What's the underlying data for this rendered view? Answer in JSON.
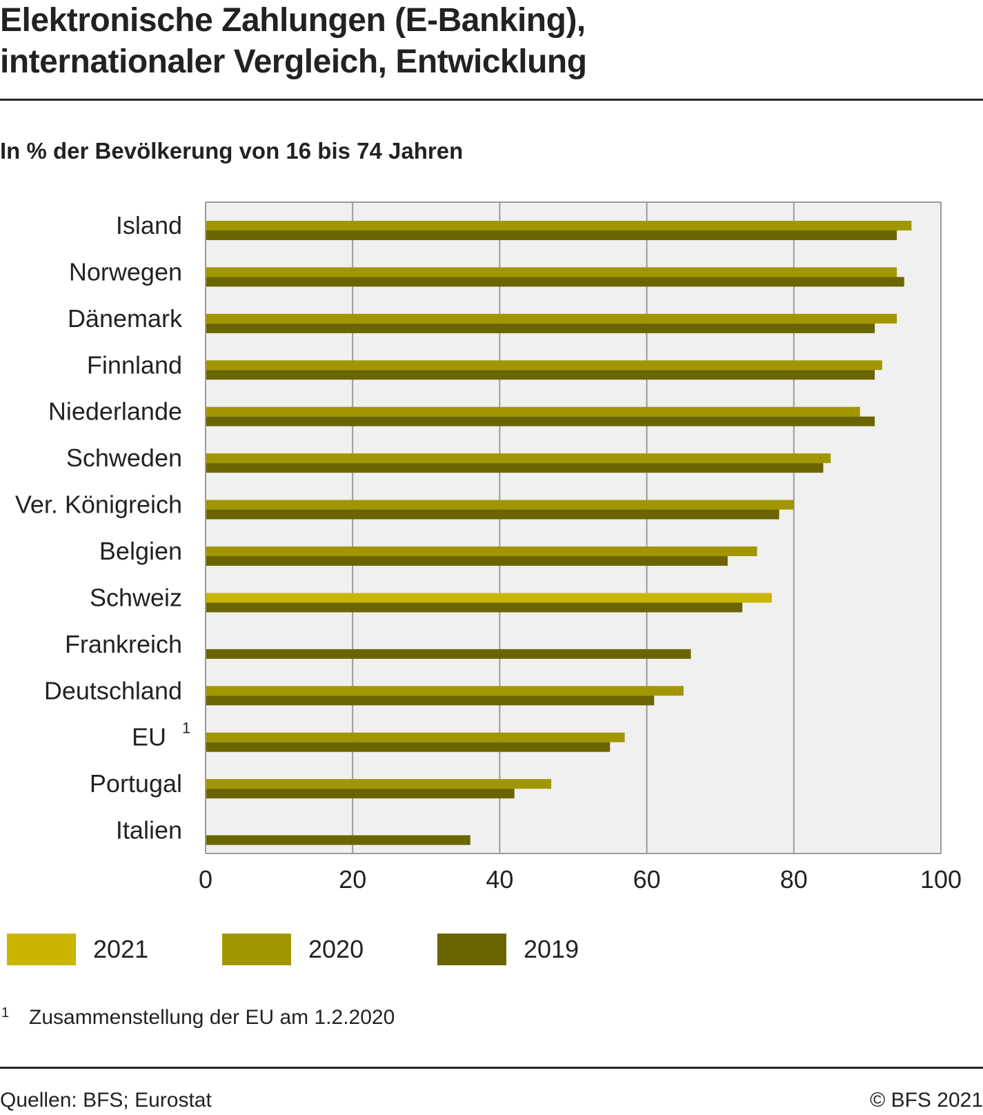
{
  "header": {
    "title_line1": "Elektronische Zahlungen (E-Banking),",
    "title_line2": "internationaler Vergleich, Entwicklung",
    "subtitle": "In % der Bevölkerung von 16 bis 74 Jahren"
  },
  "colors": {
    "2021": "#c9b400",
    "2020": "#a29600",
    "2019": "#6b6500",
    "plot_bg": "#f0f0f0",
    "grid": "#9a9a9a"
  },
  "chart_data": {
    "type": "bar",
    "orientation": "horizontal",
    "title": "Elektronische Zahlungen (E-Banking), internationaler Vergleich, Entwicklung",
    "subtitle": "In % der Bevölkerung von 16 bis 74 Jahren",
    "categories": [
      "Island",
      "Norwegen",
      "Dänemark",
      "Finnland",
      "Niederlande",
      "Schweden",
      "Ver. Königreich",
      "Belgien",
      "Schweiz",
      "Frankreich",
      "Deutschland",
      "EU",
      "Portugal",
      "Italien"
    ],
    "category_superscripts": [
      "",
      "",
      "",
      "",
      "",
      "",
      "",
      "",
      "",
      "",
      "",
      "1",
      "",
      ""
    ],
    "series": [
      {
        "name": "2021",
        "values": [
          null,
          null,
          null,
          null,
          null,
          null,
          null,
          null,
          77,
          null,
          null,
          null,
          null,
          null
        ]
      },
      {
        "name": "2020",
        "values": [
          96,
          94,
          94,
          92,
          89,
          85,
          80,
          75,
          null,
          null,
          65,
          57,
          47,
          null
        ]
      },
      {
        "name": "2019",
        "values": [
          94,
          95,
          91,
          91,
          91,
          84,
          78,
          71,
          73,
          66,
          61,
          55,
          42,
          36
        ]
      }
    ],
    "xlim": [
      0,
      100
    ],
    "xticks": [
      0,
      20,
      40,
      60,
      80,
      100
    ],
    "grid": true,
    "legend_placement": "bottom"
  },
  "legend": {
    "items": [
      {
        "label": "2021"
      },
      {
        "label": "2020"
      },
      {
        "label": "2019"
      }
    ]
  },
  "footnote": {
    "mark": "1",
    "text": "Zusammenstellung der EU am 1.2.2020"
  },
  "footer": {
    "source": "Quellen: BFS; Eurostat",
    "copyright": "© BFS 2021"
  }
}
